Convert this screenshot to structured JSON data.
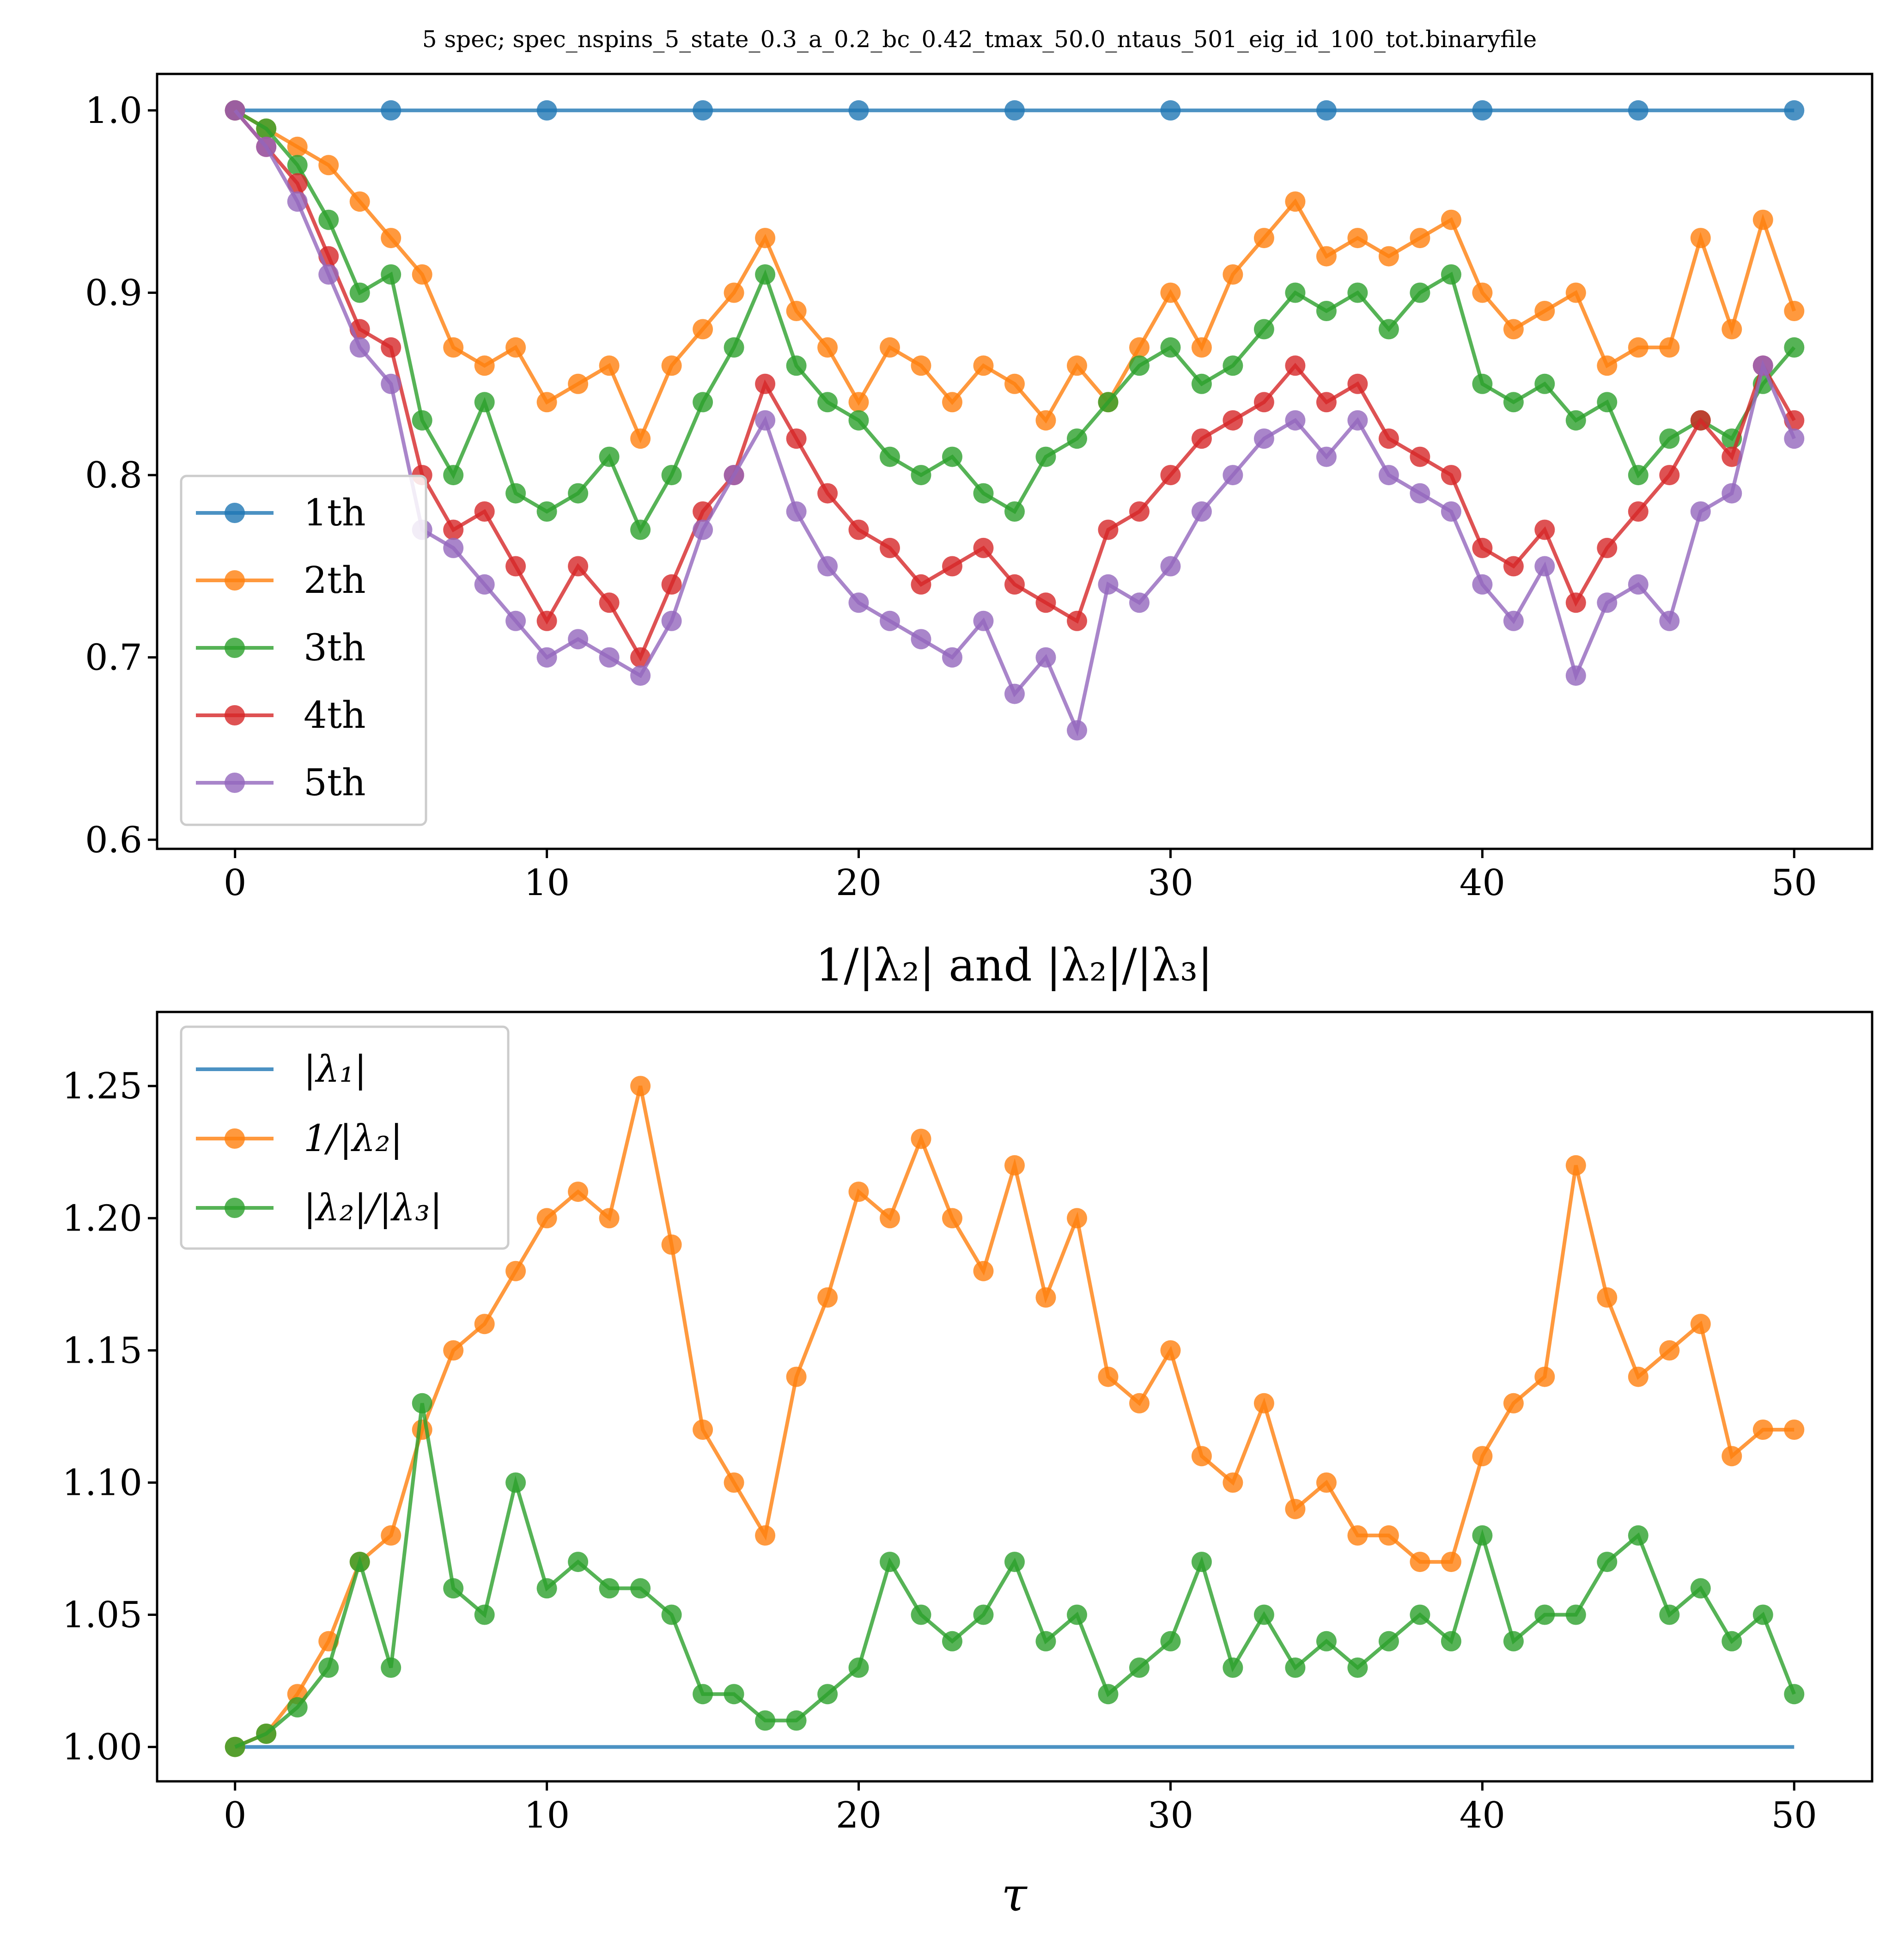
{
  "colors": {
    "blue": "#1f77b4",
    "orange": "#ff7f0e",
    "green": "#2ca02c",
    "red": "#d62728",
    "purple": "#9467bd"
  },
  "chart_data": [
    {
      "type": "line",
      "title": "5 spec; spec_nspins_5_state_0.3_a_0.2_bc_0.42_tmax_50.0_ntaus_501_eig_id_100_tot.binaryfile",
      "xlabel": "",
      "ylabel": "",
      "xlim": [
        -2.5,
        52.5
      ],
      "ylim": [
        0.595,
        1.02
      ],
      "xticks": [
        0,
        10,
        20,
        30,
        40,
        50
      ],
      "xtick_labels": [
        "0",
        "10",
        "20",
        "30",
        "40",
        "50"
      ],
      "yticks": [
        0.6,
        0.7,
        0.8,
        0.9,
        1.0
      ],
      "ytick_labels": [
        "0.6",
        "0.7",
        "0.8",
        "0.9",
        "1.0"
      ],
      "grid": false,
      "legend": "lower-left",
      "markers": true,
      "series": [
        {
          "name": "1th",
          "color": "#1f77b4",
          "x": [
            0,
            5,
            10,
            15,
            20,
            25,
            30,
            35,
            40,
            45,
            50
          ],
          "y": [
            1.0,
            1.0,
            1.0,
            1.0,
            1.0,
            1.0,
            1.0,
            1.0,
            1.0,
            1.0,
            1.0
          ]
        },
        {
          "name": "2th",
          "color": "#ff7f0e",
          "x": [
            0,
            1,
            2,
            3,
            4,
            5,
            6,
            7,
            8,
            9,
            10,
            11,
            12,
            13,
            14,
            15,
            16,
            17,
            18,
            19,
            20,
            21,
            22,
            23,
            24,
            25,
            26,
            27,
            28,
            29,
            30,
            31,
            32,
            33,
            34,
            35,
            36,
            37,
            38,
            39,
            40,
            41,
            42,
            43,
            44,
            45,
            46,
            47,
            48,
            49,
            50
          ],
          "y": [
            1.0,
            0.99,
            0.98,
            0.97,
            0.95,
            0.93,
            0.91,
            0.87,
            0.86,
            0.87,
            0.84,
            0.85,
            0.86,
            0.82,
            0.86,
            0.88,
            0.9,
            0.93,
            0.89,
            0.87,
            0.84,
            0.87,
            0.86,
            0.84,
            0.86,
            0.85,
            0.83,
            0.86,
            0.84,
            0.87,
            0.9,
            0.87,
            0.91,
            0.93,
            0.95,
            0.92,
            0.93,
            0.92,
            0.93,
            0.94,
            0.9,
            0.88,
            0.89,
            0.9,
            0.86,
            0.87,
            0.87,
            0.93,
            0.88,
            0.94,
            0.89
          ]
        },
        {
          "name": "3th",
          "color": "#2ca02c",
          "x": [
            0,
            1,
            2,
            3,
            4,
            5,
            6,
            7,
            8,
            9,
            10,
            11,
            12,
            13,
            14,
            15,
            16,
            17,
            18,
            19,
            20,
            21,
            22,
            23,
            24,
            25,
            26,
            27,
            28,
            29,
            30,
            31,
            32,
            33,
            34,
            35,
            36,
            37,
            38,
            39,
            40,
            41,
            42,
            43,
            44,
            45,
            46,
            47,
            48,
            49,
            50
          ],
          "y": [
            1.0,
            0.99,
            0.97,
            0.94,
            0.9,
            0.91,
            0.83,
            0.8,
            0.84,
            0.79,
            0.78,
            0.79,
            0.81,
            0.77,
            0.8,
            0.84,
            0.87,
            0.91,
            0.86,
            0.84,
            0.83,
            0.81,
            0.8,
            0.81,
            0.79,
            0.78,
            0.81,
            0.82,
            0.84,
            0.86,
            0.87,
            0.85,
            0.86,
            0.88,
            0.9,
            0.89,
            0.9,
            0.88,
            0.9,
            0.91,
            0.85,
            0.84,
            0.85,
            0.83,
            0.84,
            0.8,
            0.82,
            0.83,
            0.82,
            0.85,
            0.87
          ]
        },
        {
          "name": "4th",
          "color": "#d62728",
          "x": [
            0,
            1,
            2,
            3,
            4,
            5,
            6,
            7,
            8,
            9,
            10,
            11,
            12,
            13,
            14,
            15,
            16,
            17,
            18,
            19,
            20,
            21,
            22,
            23,
            24,
            25,
            26,
            27,
            28,
            29,
            30,
            31,
            32,
            33,
            34,
            35,
            36,
            37,
            38,
            39,
            40,
            41,
            42,
            43,
            44,
            45,
            46,
            47,
            48,
            49,
            50
          ],
          "y": [
            1.0,
            0.98,
            0.96,
            0.92,
            0.88,
            0.87,
            0.8,
            0.77,
            0.78,
            0.75,
            0.72,
            0.75,
            0.73,
            0.7,
            0.74,
            0.78,
            0.8,
            0.85,
            0.82,
            0.79,
            0.77,
            0.76,
            0.74,
            0.75,
            0.76,
            0.74,
            0.73,
            0.72,
            0.77,
            0.78,
            0.8,
            0.82,
            0.83,
            0.84,
            0.86,
            0.84,
            0.85,
            0.82,
            0.81,
            0.8,
            0.76,
            0.75,
            0.77,
            0.73,
            0.76,
            0.78,
            0.8,
            0.83,
            0.81,
            0.86,
            0.83
          ]
        },
        {
          "name": "5th",
          "color": "#9467bd",
          "x": [
            0,
            1,
            2,
            3,
            4,
            5,
            6,
            7,
            8,
            9,
            10,
            11,
            12,
            13,
            14,
            15,
            16,
            17,
            18,
            19,
            20,
            21,
            22,
            23,
            24,
            25,
            26,
            27,
            28,
            29,
            30,
            31,
            32,
            33,
            34,
            35,
            36,
            37,
            38,
            39,
            40,
            41,
            42,
            43,
            44,
            45,
            46,
            47,
            48,
            49,
            50
          ],
          "y": [
            1.0,
            0.98,
            0.95,
            0.91,
            0.87,
            0.85,
            0.77,
            0.76,
            0.74,
            0.72,
            0.7,
            0.71,
            0.7,
            0.69,
            0.72,
            0.77,
            0.8,
            0.83,
            0.78,
            0.75,
            0.73,
            0.72,
            0.71,
            0.7,
            0.72,
            0.68,
            0.7,
            0.66,
            0.74,
            0.73,
            0.75,
            0.78,
            0.8,
            0.82,
            0.83,
            0.81,
            0.83,
            0.8,
            0.79,
            0.78,
            0.74,
            0.72,
            0.75,
            0.69,
            0.73,
            0.74,
            0.72,
            0.78,
            0.79,
            0.86,
            0.82
          ]
        }
      ]
    },
    {
      "type": "line",
      "title": "1/|λ₂| and |λ₂|/|λ₃|",
      "xlabel": "τ",
      "ylabel": "",
      "xlim": [
        -2.5,
        52.5
      ],
      "ylim": [
        0.987,
        1.278
      ],
      "xticks": [
        0,
        10,
        20,
        30,
        40,
        50
      ],
      "xtick_labels": [
        "0",
        "10",
        "20",
        "30",
        "40",
        "50"
      ],
      "yticks": [
        1.0,
        1.05,
        1.1,
        1.15,
        1.2,
        1.25
      ],
      "ytick_labels": [
        "1.00",
        "1.05",
        "1.10",
        "1.15",
        "1.20",
        "1.25"
      ],
      "grid": false,
      "legend": "upper-left",
      "series": [
        {
          "name": "|λ₁|",
          "color": "#1f77b4",
          "markers": false,
          "x": [
            0,
            50
          ],
          "y": [
            1.0,
            1.0
          ]
        },
        {
          "name": "1/|λ₂|",
          "color": "#ff7f0e",
          "markers": true,
          "x": [
            0,
            1,
            2,
            3,
            4,
            5,
            6,
            7,
            8,
            9,
            10,
            11,
            12,
            13,
            14,
            15,
            16,
            17,
            18,
            19,
            20,
            21,
            22,
            23,
            24,
            25,
            26,
            27,
            28,
            29,
            30,
            31,
            32,
            33,
            34,
            35,
            36,
            37,
            38,
            39,
            40,
            41,
            42,
            43,
            44,
            45,
            46,
            47,
            48,
            49,
            50
          ],
          "y": [
            1.0,
            1.005,
            1.02,
            1.04,
            1.07,
            1.08,
            1.12,
            1.15,
            1.16,
            1.18,
            1.2,
            1.21,
            1.2,
            1.25,
            1.19,
            1.12,
            1.1,
            1.08,
            1.14,
            1.17,
            1.21,
            1.2,
            1.23,
            1.2,
            1.18,
            1.22,
            1.17,
            1.2,
            1.14,
            1.13,
            1.15,
            1.11,
            1.1,
            1.13,
            1.09,
            1.1,
            1.08,
            1.08,
            1.07,
            1.07,
            1.11,
            1.13,
            1.14,
            1.22,
            1.17,
            1.14,
            1.15,
            1.16,
            1.11,
            1.12,
            1.12
          ]
        },
        {
          "name": "|λ₂|/|λ₃|",
          "color": "#2ca02c",
          "markers": true,
          "x": [
            0,
            1,
            2,
            3,
            4,
            5,
            6,
            7,
            8,
            9,
            10,
            11,
            12,
            13,
            14,
            15,
            16,
            17,
            18,
            19,
            20,
            21,
            22,
            23,
            24,
            25,
            26,
            27,
            28,
            29,
            30,
            31,
            32,
            33,
            34,
            35,
            36,
            37,
            38,
            39,
            40,
            41,
            42,
            43,
            44,
            45,
            46,
            47,
            48,
            49,
            50
          ],
          "y": [
            1.0,
            1.005,
            1.015,
            1.03,
            1.07,
            1.03,
            1.13,
            1.06,
            1.05,
            1.1,
            1.06,
            1.07,
            1.06,
            1.06,
            1.05,
            1.02,
            1.02,
            1.01,
            1.01,
            1.02,
            1.03,
            1.07,
            1.05,
            1.04,
            1.05,
            1.07,
            1.04,
            1.05,
            1.02,
            1.03,
            1.04,
            1.07,
            1.03,
            1.05,
            1.03,
            1.04,
            1.03,
            1.04,
            1.05,
            1.04,
            1.08,
            1.04,
            1.05,
            1.05,
            1.07,
            1.08,
            1.05,
            1.06,
            1.04,
            1.05,
            1.02
          ]
        }
      ]
    }
  ]
}
